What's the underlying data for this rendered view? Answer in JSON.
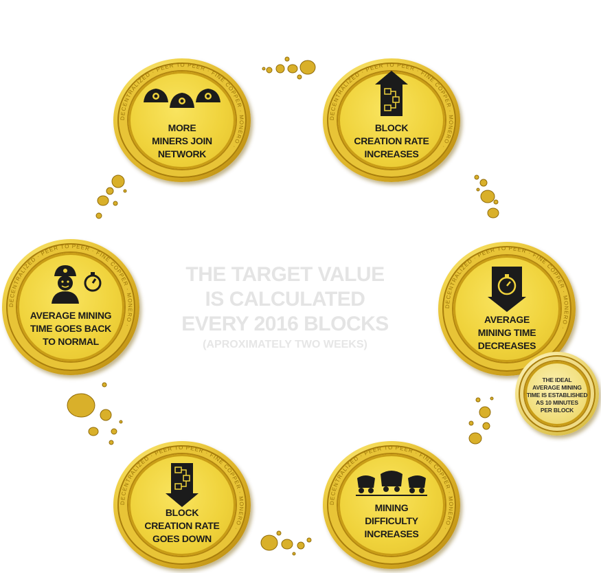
{
  "header": {
    "text": ""
  },
  "center": {
    "line1": "THE  TARGET VALUE",
    "line2": "IS CALCULATED",
    "line3": "EVERY 2016 BLOCKS",
    "line4": "(APROXIMATELY  TWO WEEKS)"
  },
  "coins": {
    "miners": {
      "lines": [
        "MORE",
        "MINERS JOIN",
        "NETWORK"
      ],
      "icon": "miner-helmets-icon"
    },
    "block_up": {
      "lines": [
        "BLOCK",
        "CREATION RATE",
        "INCREASES"
      ],
      "icon": "block-up-arrow-icon"
    },
    "avg_down": {
      "lines": [
        "AVERAGE",
        "MINING TIME",
        "DECREASES"
      ],
      "icon": "stopwatch-down-arrow-icon"
    },
    "ideal": {
      "lines": [
        "THE IDEAL",
        "AVERAGE MINING",
        "TIME IS ESTABLISHED",
        "AS 10 MINUTES",
        "PER BLOCK"
      ]
    },
    "difficulty": {
      "lines": [
        "MINING",
        "DIFFICULTY",
        "INCREASES"
      ],
      "icon": "mine-carts-icon"
    },
    "block_down": {
      "lines": [
        "BLOCK",
        "CREATION RATE",
        "GOES DOWN"
      ],
      "icon": "block-down-arrow-icon"
    },
    "avg_normal": {
      "lines": [
        "AVERAGE MINING",
        "TIME GOES BACK",
        "TO NORMAL"
      ],
      "icon": "miner-stopwatch-icon"
    }
  },
  "coin_ring_text": "DECENTRALIZED · PEER TO PEER · FINE COPPER · MONERO ·",
  "colors": {
    "gold": "#e8c437",
    "gold_dark": "#a87d0c",
    "text": "#1b1b1b",
    "faint": "#e4e4e4"
  }
}
